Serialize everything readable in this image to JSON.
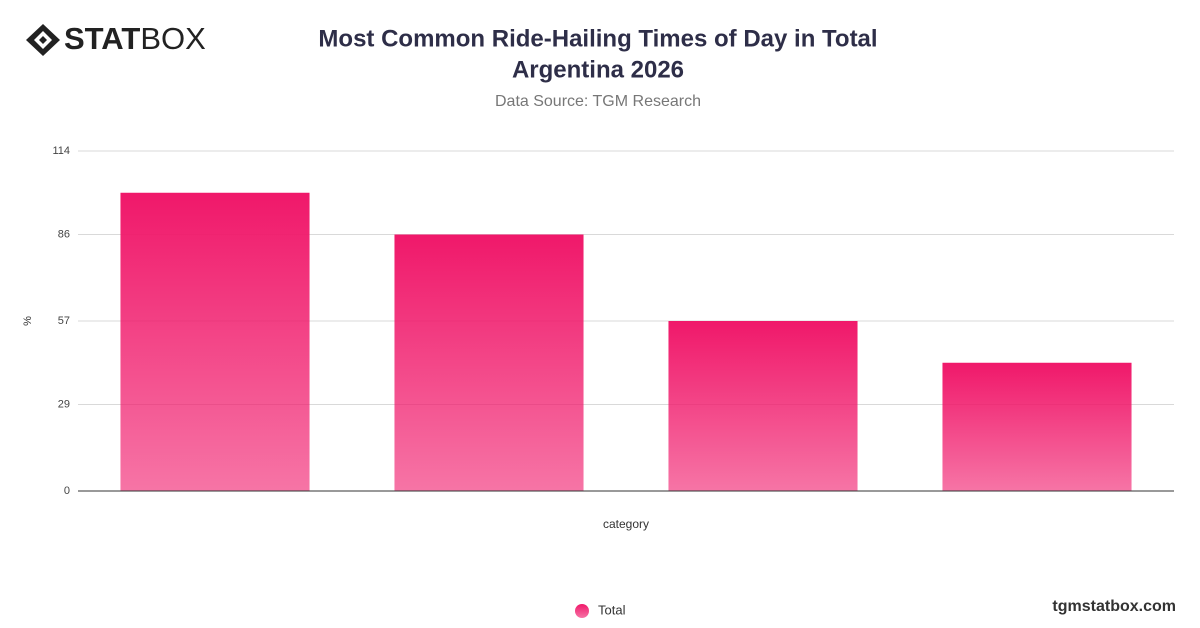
{
  "logo": {
    "bold": "STAT",
    "light": "BOX"
  },
  "footer": "tgmstatbox.com",
  "chart_data": {
    "type": "bar",
    "title": [
      "Most Common Ride-Hailing Times of Day in Total",
      "Argentina 2026"
    ],
    "subtitle": "Data Source: TGM Research",
    "x_label": "category",
    "y_label": "%",
    "categories": [
      null,
      null,
      null,
      null
    ],
    "series": [
      {
        "name": "Total",
        "color": "#f0186a",
        "values": [
          100,
          86,
          57,
          43
        ]
      }
    ],
    "ylim": [
      0,
      114
    ],
    "yticks": [
      0,
      29,
      57,
      86,
      114
    ],
    "grid": true,
    "legend": "bottom"
  }
}
